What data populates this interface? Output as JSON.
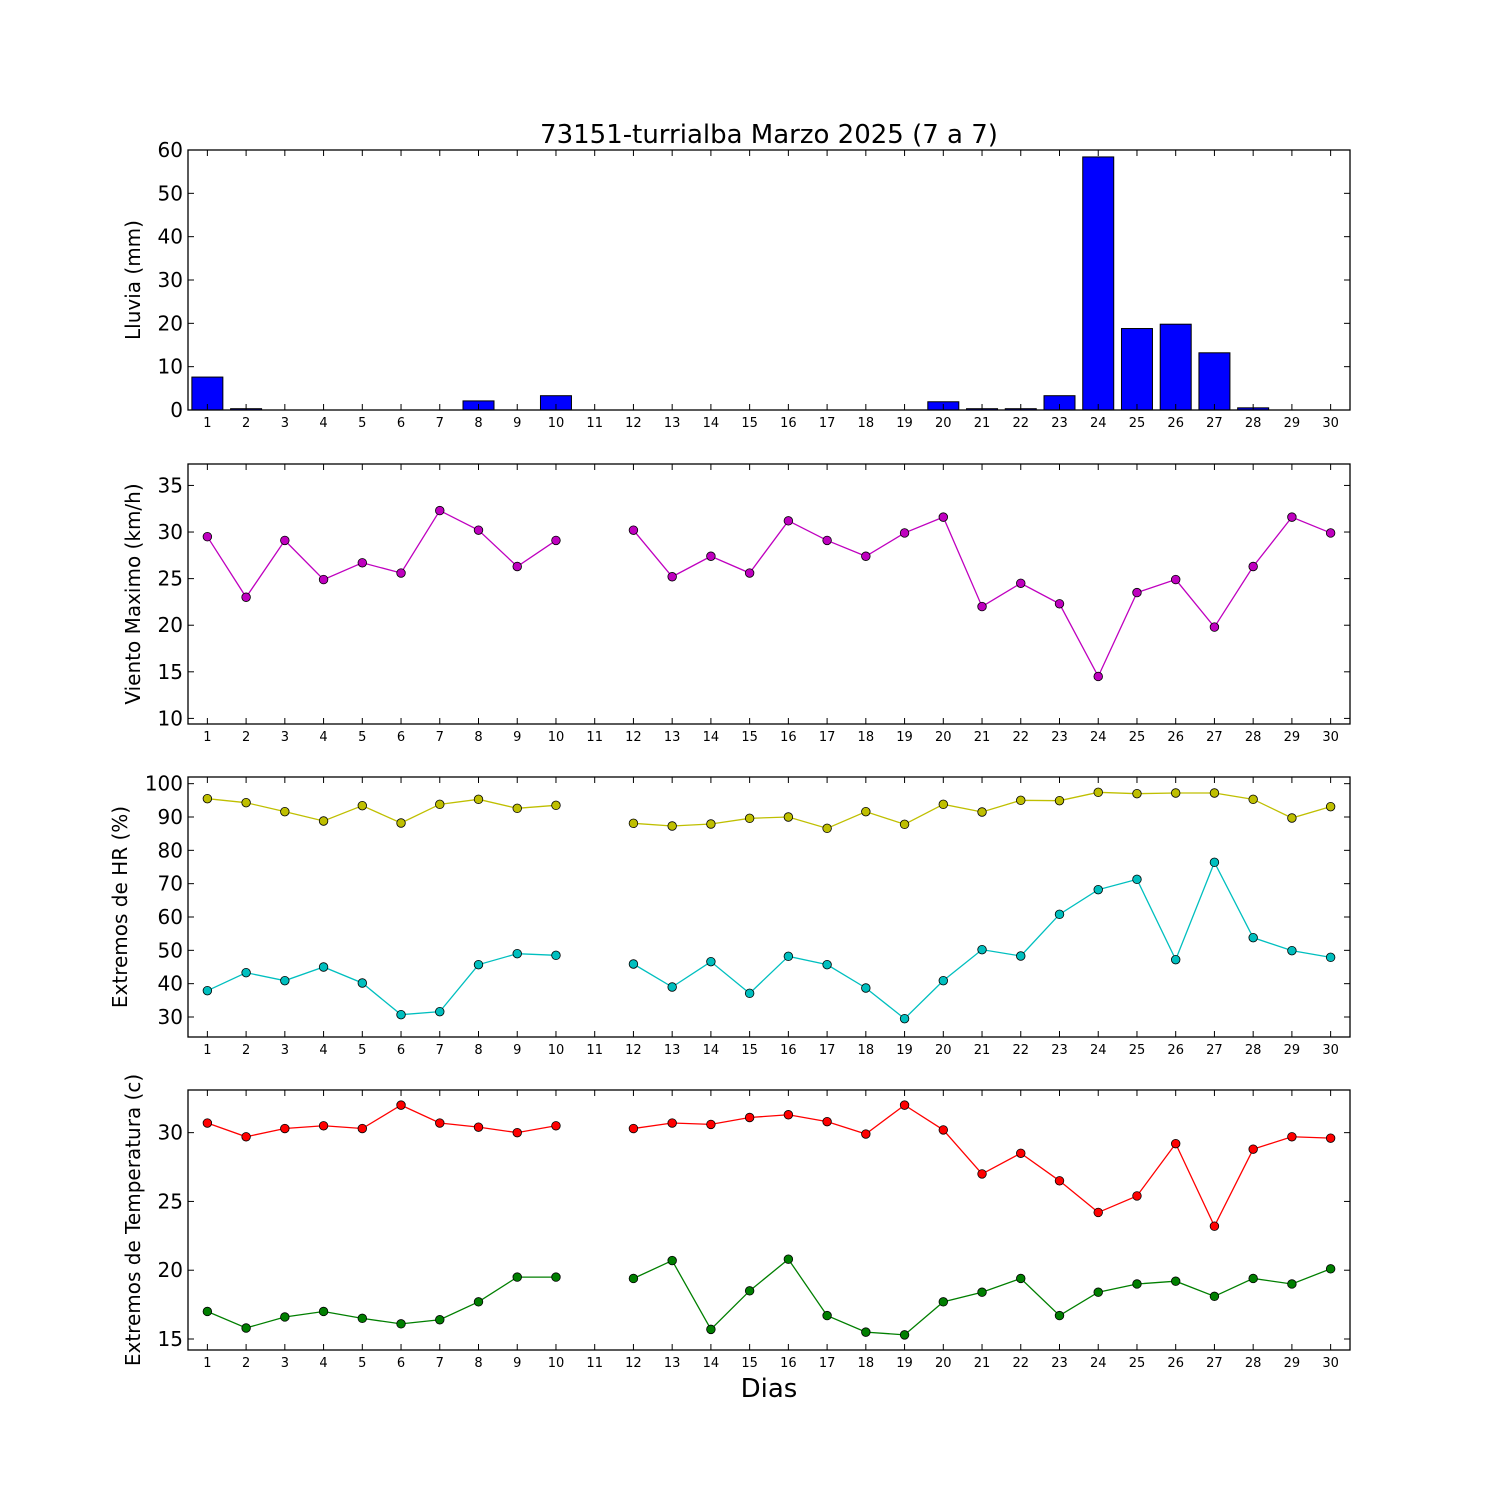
{
  "title": "73151-turrialba Marzo 2025  (7 a 7)",
  "xlabel": "Dias",
  "chart_data": [
    {
      "type": "bar",
      "ylabel": "Lluvia (mm)",
      "ylim": [
        0,
        60
      ],
      "yticks": [
        0,
        10,
        20,
        30,
        40,
        50,
        60
      ],
      "categories": [
        1,
        2,
        3,
        4,
        5,
        6,
        7,
        8,
        9,
        10,
        11,
        12,
        13,
        14,
        15,
        16,
        17,
        18,
        19,
        20,
        21,
        22,
        23,
        24,
        25,
        26,
        27,
        28,
        29,
        30
      ],
      "xtick_labels": [
        "1",
        "2",
        "3",
        "4",
        "5",
        "6",
        "7",
        "8",
        "9",
        "10",
        "11",
        "12",
        "13",
        "14",
        "15",
        "16",
        "17",
        "18",
        "19",
        "20",
        "21",
        "22",
        "23",
        "24",
        "25",
        "26",
        "27",
        "28",
        "29",
        "30"
      ],
      "series": [
        {
          "color": "#0000ff",
          "values": [
            7.6,
            0.3,
            0,
            0,
            0,
            0,
            0,
            2.1,
            0,
            3.3,
            0,
            0,
            0,
            0,
            0,
            0,
            0,
            0,
            0,
            1.9,
            0.3,
            0.3,
            3.3,
            58.4,
            18.8,
            19.8,
            13.2,
            0.5,
            0,
            0
          ]
        }
      ]
    },
    {
      "type": "line",
      "ylabel": "Viento Maximo (km/h)",
      "ylim": [
        9.4,
        37.3
      ],
      "yticks": [
        10,
        15,
        20,
        25,
        30,
        35
      ],
      "x": [
        1,
        2,
        3,
        4,
        5,
        6,
        7,
        8,
        9,
        10,
        11,
        12,
        13,
        14,
        15,
        16,
        17,
        18,
        19,
        20,
        21,
        22,
        23,
        24,
        25,
        26,
        27,
        28,
        29,
        30
      ],
      "xtick_labels": [
        "1",
        "2",
        "3",
        "4",
        "5",
        "6",
        "7",
        "8",
        "9",
        "10",
        "11",
        "12",
        "13",
        "14",
        "15",
        "16",
        "17",
        "18",
        "19",
        "20",
        "21",
        "22",
        "23",
        "24",
        "25",
        "26",
        "27",
        "28",
        "29",
        "30"
      ],
      "series": [
        {
          "color": "#bf00bf",
          "values": [
            29.5,
            23.0,
            29.1,
            24.9,
            26.7,
            25.6,
            32.3,
            30.2,
            26.3,
            29.1,
            null,
            30.2,
            25.2,
            27.4,
            25.6,
            31.2,
            29.1,
            27.4,
            29.9,
            31.6,
            22.0,
            24.5,
            22.3,
            14.5,
            23.5,
            24.9,
            19.8,
            26.3,
            31.6,
            29.9
          ]
        }
      ]
    },
    {
      "type": "line",
      "ylabel": "Extremos de HR (%)",
      "ylim": [
        24,
        102
      ],
      "yticks": [
        30,
        40,
        50,
        60,
        70,
        80,
        90,
        100
      ],
      "x": [
        1,
        2,
        3,
        4,
        5,
        6,
        7,
        8,
        9,
        10,
        11,
        12,
        13,
        14,
        15,
        16,
        17,
        18,
        19,
        20,
        21,
        22,
        23,
        24,
        25,
        26,
        27,
        28,
        29,
        30
      ],
      "xtick_labels": [
        "1",
        "2",
        "3",
        "4",
        "5",
        "6",
        "7",
        "8",
        "9",
        "10",
        "11",
        "12",
        "13",
        "14",
        "15",
        "16",
        "17",
        "18",
        "19",
        "20",
        "21",
        "22",
        "23",
        "24",
        "25",
        "26",
        "27",
        "28",
        "29",
        "30"
      ],
      "series": [
        {
          "color": "#bfbf00",
          "values": [
            95.5,
            94.3,
            91.6,
            88.8,
            93.4,
            88.2,
            93.8,
            95.3,
            92.6,
            93.5,
            null,
            88.1,
            87.3,
            87.9,
            89.6,
            90.0,
            86.6,
            91.6,
            87.8,
            93.8,
            91.5,
            95.0,
            94.9,
            97.4,
            97.0,
            97.2,
            97.2,
            95.3,
            89.7,
            93.1
          ]
        },
        {
          "color": "#00bfbf",
          "values": [
            37.9,
            43.3,
            40.9,
            45.0,
            40.2,
            30.7,
            31.6,
            45.7,
            49.0,
            48.5,
            null,
            45.9,
            39.0,
            46.6,
            37.1,
            48.2,
            45.7,
            38.7,
            29.5,
            40.9,
            50.2,
            48.3,
            60.8,
            68.2,
            71.3,
            47.2,
            76.4,
            53.8,
            49.9,
            47.9
          ]
        }
      ]
    },
    {
      "type": "line",
      "ylabel": "Extremos de Temperatura (c)",
      "ylim": [
        14.2,
        33.1
      ],
      "yticks": [
        15,
        20,
        25,
        30
      ],
      "x": [
        1,
        2,
        3,
        4,
        5,
        6,
        7,
        8,
        9,
        10,
        11,
        12,
        13,
        14,
        15,
        16,
        17,
        18,
        19,
        20,
        21,
        22,
        23,
        24,
        25,
        26,
        27,
        28,
        29,
        30
      ],
      "xtick_labels": [
        "1",
        "2",
        "3",
        "4",
        "5",
        "6",
        "7",
        "8",
        "9",
        "10",
        "11",
        "12",
        "13",
        "14",
        "15",
        "16",
        "17",
        "18",
        "19",
        "20",
        "21",
        "22",
        "23",
        "24",
        "25",
        "26",
        "27",
        "28",
        "29",
        "30"
      ],
      "series": [
        {
          "color": "#ff0000",
          "values": [
            30.7,
            29.7,
            30.3,
            30.5,
            30.3,
            32.0,
            30.7,
            30.4,
            30.0,
            30.5,
            null,
            30.3,
            30.7,
            30.6,
            31.1,
            31.3,
            30.8,
            29.9,
            32.0,
            30.2,
            27.0,
            28.5,
            26.5,
            24.2,
            25.4,
            29.2,
            23.2,
            28.8,
            29.7,
            29.6
          ]
        },
        {
          "color": "#007f00",
          "values": [
            17.0,
            15.8,
            16.6,
            17.0,
            16.5,
            16.1,
            16.4,
            17.7,
            19.5,
            19.5,
            null,
            19.4,
            20.7,
            15.7,
            18.5,
            20.8,
            16.7,
            15.5,
            15.3,
            17.7,
            18.4,
            19.4,
            16.7,
            18.4,
            19.0,
            19.2,
            18.1,
            19.4,
            19.0,
            20.1
          ]
        }
      ]
    }
  ]
}
